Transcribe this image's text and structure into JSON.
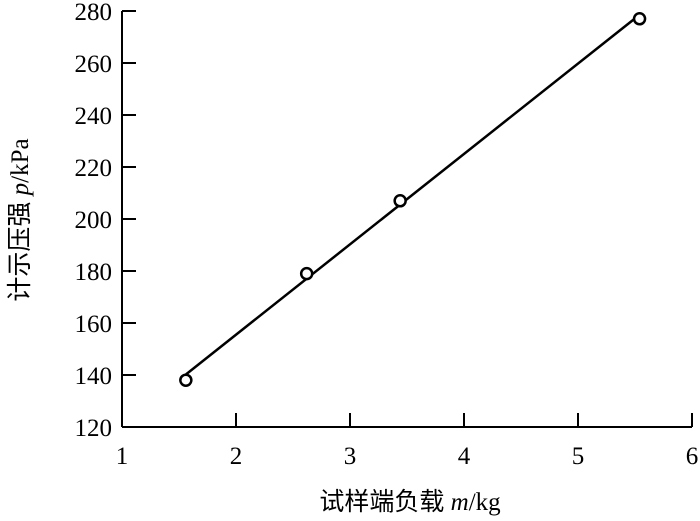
{
  "chart_data": {
    "type": "scatter",
    "title": "",
    "xlabel_prefix": "试样端负载 ",
    "xlabel_var": "m",
    "xlabel_unit": "/kg",
    "ylabel_prefix": "计示压强 ",
    "ylabel_var": "p",
    "ylabel_unit": "/kPa",
    "xlim": [
      1,
      6
    ],
    "ylim": [
      120,
      280
    ],
    "xticks": [
      1,
      2,
      3,
      4,
      5,
      6
    ],
    "yticks": [
      120,
      140,
      160,
      180,
      200,
      220,
      240,
      260,
      280
    ],
    "grid": false,
    "marker": "open-circle",
    "points": [
      {
        "x": 1.56,
        "y": 138
      },
      {
        "x": 2.62,
        "y": 179
      },
      {
        "x": 3.44,
        "y": 207
      },
      {
        "x": 5.54,
        "y": 277
      }
    ],
    "fit_line": {
      "x": [
        1.56,
        5.53
      ],
      "y": [
        140.2,
        278.2
      ]
    },
    "colors": {
      "line": "#000000",
      "marker": "#000000"
    }
  }
}
